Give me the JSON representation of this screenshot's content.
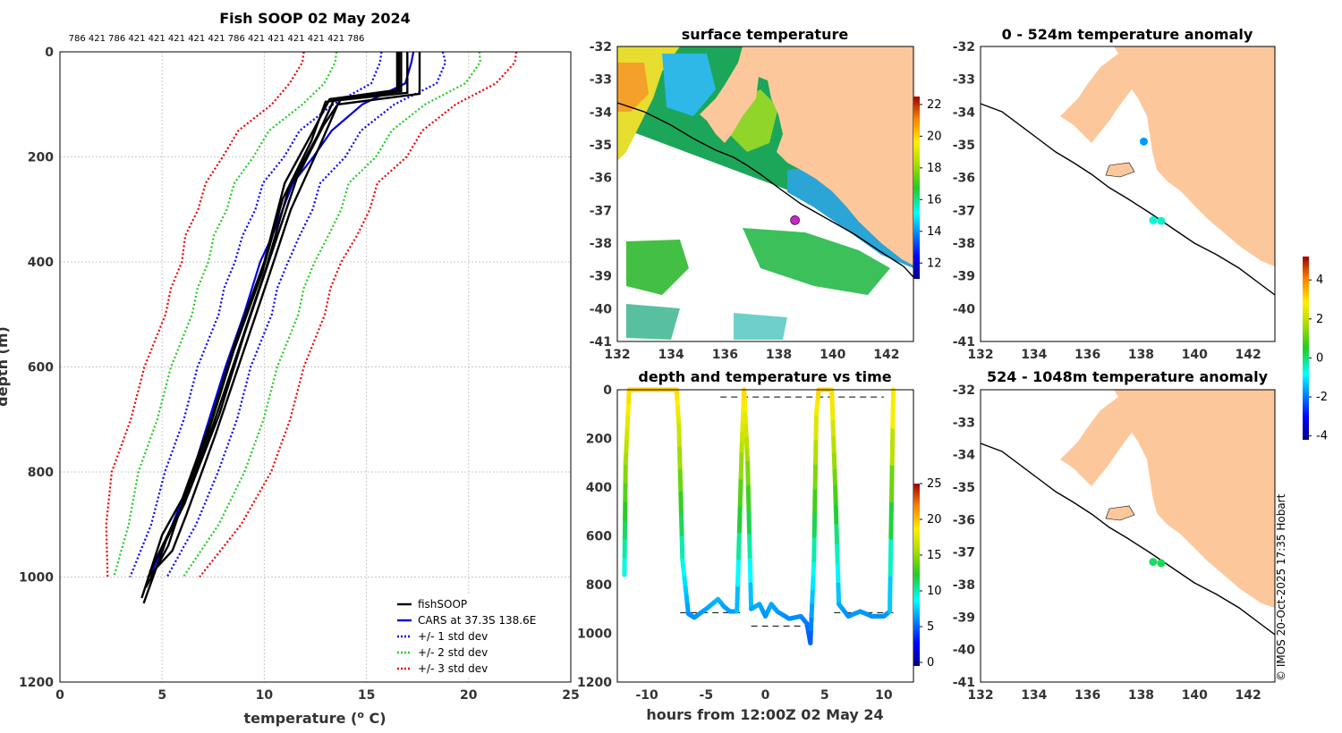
{
  "colors": {
    "fishsoop": "#000000",
    "cars": "#0000dd",
    "std1": "#0000ff",
    "std2": "#22cc22",
    "std3": "#ee0000",
    "land": "#fcc89b",
    "grid": "#c8c8c8",
    "frame": "#000000"
  },
  "credit": "© IMOS 20-Oct-2025 17:35 Hobart",
  "chart_data": [
    {
      "id": "profile",
      "type": "line",
      "title": "Fish SOOP 02 May 2024",
      "xlabel": "temperature (",
      "xlabel_sup": "o",
      "xlabel_tail": " C)",
      "ylabel": "depth (m)",
      "xlim": [
        0,
        25
      ],
      "ylim": [
        0,
        1200
      ],
      "y_reversed": true,
      "xticks": [
        0,
        5,
        10,
        15,
        20,
        25
      ],
      "yticks": [
        0,
        200,
        400,
        600,
        800,
        1000,
        1200
      ],
      "top_labels": "786 421 786 421 421 421 421 421 786 421 421 421 421 421 786",
      "legend_position": "bottom-right",
      "legend": [
        {
          "label": "fishSOOP",
          "color": "#000000",
          "style": "solid"
        },
        {
          "label": "CARS at 37.3S 138.6E",
          "color": "#0000dd",
          "style": "solid"
        },
        {
          "label": "+/- 1 std dev",
          "color": "#0000ff",
          "style": "dotted"
        },
        {
          "label": "+/- 2 std dev",
          "color": "#22cc22",
          "style": "dotted"
        },
        {
          "label": "+/- 3 std dev",
          "color": "#ee0000",
          "style": "dotted"
        }
      ],
      "cars": {
        "name": "CARS at 37.3S 138.6E",
        "depth": [
          0,
          20,
          60,
          100,
          150,
          200,
          250,
          300,
          350,
          400,
          450,
          500,
          600,
          700,
          800,
          900,
          1000
        ],
        "temp": [
          17.3,
          17.2,
          16.9,
          14.8,
          13.3,
          12.4,
          11.4,
          10.9,
          10.4,
          9.8,
          9.4,
          9.0,
          8.1,
          7.3,
          6.5,
          5.5,
          4.4
        ]
      },
      "std_bands": [
        {
          "name": "+/- 1 std dev",
          "sd": 1,
          "minus": [
            15.8,
            15.6,
            15.3,
            13.3,
            11.8,
            10.9,
            10.0,
            9.5,
            9.0,
            8.5,
            8.1,
            7.7,
            6.8,
            6.0,
            5.2,
            4.4,
            3.5
          ],
          "plus": [
            18.8,
            18.8,
            18.5,
            16.3,
            14.8,
            13.9,
            12.8,
            12.3,
            11.8,
            11.1,
            10.7,
            10.3,
            9.4,
            8.6,
            7.8,
            6.6,
            5.3
          ]
        },
        {
          "name": "+/- 2 std dev",
          "sd": 2,
          "minus": [
            13.6,
            13.4,
            13.0,
            11.8,
            10.3,
            9.4,
            8.6,
            8.1,
            7.6,
            7.2,
            6.8,
            6.4,
            5.5,
            4.7,
            3.9,
            3.3,
            2.7
          ],
          "plus": [
            20.6,
            20.5,
            19.9,
            17.8,
            16.3,
            15.4,
            14.2,
            13.7,
            13.2,
            12.4,
            12.0,
            11.6,
            10.7,
            9.9,
            9.1,
            7.7,
            6.1
          ]
        },
        {
          "name": "+/- 3 std dev",
          "sd": 3,
          "minus": [
            12.0,
            11.8,
            11.3,
            10.3,
            8.8,
            7.9,
            7.2,
            6.7,
            6.2,
            5.9,
            5.5,
            5.1,
            4.2,
            3.4,
            2.6,
            2.2,
            2.4
          ],
          "plus": [
            22.4,
            22.2,
            21.4,
            19.3,
            17.8,
            16.9,
            15.6,
            15.1,
            14.6,
            13.7,
            13.3,
            12.9,
            12.0,
            11.2,
            10.4,
            8.8,
            6.9
          ]
        }
      ],
      "fishsoop_profiles": [
        {
          "depth": [
            0,
            72,
            90,
            150,
            250,
            400,
            550,
            700,
            850,
            920,
            1040
          ],
          "temp": [
            16.6,
            16.6,
            13.2,
            12.4,
            11.0,
            10.0,
            8.6,
            7.4,
            6.0,
            5.0,
            4.0
          ]
        },
        {
          "depth": [
            0,
            75,
            92,
            160,
            260,
            410,
            560,
            710,
            860,
            930,
            1050
          ],
          "temp": [
            16.7,
            16.7,
            13.4,
            12.6,
            11.2,
            10.1,
            8.8,
            7.5,
            6.1,
            5.2,
            4.1
          ]
        },
        {
          "depth": [
            0,
            78,
            95,
            170,
            280,
            420,
            570,
            720,
            870,
            940,
            1020
          ],
          "temp": [
            17.0,
            17.0,
            13.0,
            12.3,
            10.9,
            9.9,
            8.5,
            7.3,
            5.9,
            5.3,
            4.2
          ]
        },
        {
          "depth": [
            0,
            80,
            100,
            180,
            300,
            430,
            580,
            730,
            880,
            950,
            1000
          ],
          "temp": [
            17.6,
            17.6,
            13.6,
            12.7,
            11.3,
            10.2,
            8.9,
            7.6,
            6.2,
            5.5,
            4.3
          ]
        },
        {
          "depth": [
            0,
            73,
            88,
            140,
            240,
            390,
            540,
            690,
            840,
            910,
            990
          ],
          "temp": [
            16.5,
            16.5,
            13.8,
            12.9,
            11.6,
            10.3,
            9.0,
            7.8,
            6.3,
            5.4,
            4.4
          ]
        }
      ]
    },
    {
      "id": "sst_map",
      "type": "heatmap",
      "title": "surface temperature",
      "xlim": [
        132,
        143
      ],
      "ylim": [
        -41,
        -32
      ],
      "xticks": [
        132,
        134,
        136,
        138,
        140,
        142
      ],
      "yticks": [
        -32,
        -33,
        -34,
        -35,
        -36,
        -37,
        -38,
        -39,
        -40,
        -41
      ],
      "colorbar": {
        "range": [
          11,
          22.5
        ],
        "ticks": [
          12,
          14,
          16,
          18,
          20,
          22
        ]
      },
      "marker": {
        "lon": 138.6,
        "lat": -37.3,
        "color": "#cc22cc"
      }
    },
    {
      "id": "depth_time",
      "type": "line",
      "title": "depth and temperature vs time",
      "xlabel": "hours from 12:00Z 02 May 24",
      "xlim": [
        -12.5,
        12.5
      ],
      "ylim": [
        0,
        1200
      ],
      "y_reversed": true,
      "xticks": [
        -10,
        -5,
        0,
        5,
        10
      ],
      "yticks": [
        0,
        200,
        400,
        600,
        800,
        1000,
        1200
      ],
      "colorbar": {
        "range": [
          -0.5,
          25
        ],
        "ticks": [
          0,
          5,
          10,
          15,
          20,
          25
        ]
      },
      "t": [
        -11.9,
        -11.8,
        -11.5,
        -7.5,
        -7.3,
        -7.0,
        -6.5,
        -6.0,
        -5.0,
        -4.5,
        -4.0,
        -3.5,
        -3.0,
        -2.4,
        -2.0,
        -1.8,
        -1.5,
        -1.2,
        -0.5,
        0.0,
        0.5,
        1.0,
        2.0,
        3.0,
        3.5,
        3.8,
        4.1,
        4.3,
        4.5,
        5.6,
        5.9,
        6.2,
        7.0,
        8.0,
        9.0,
        10.0,
        10.5,
        10.8
      ],
      "depth": [
        760,
        300,
        0,
        0,
        150,
        700,
        920,
        935,
        900,
        880,
        860,
        890,
        910,
        910,
        250,
        0,
        300,
        900,
        880,
        930,
        880,
        910,
        940,
        930,
        960,
        1040,
        700,
        100,
        0,
        0,
        400,
        880,
        930,
        910,
        930,
        930,
        910,
        0
      ],
      "temp_scale": "surface about 19 C, cooling to about 5 C at 1000 m",
      "dashed_targets": [
        {
          "t0": -7.2,
          "t1": -1.8,
          "depth": 915
        },
        {
          "t0": -1.2,
          "t1": 4.0,
          "depth": 970
        },
        {
          "t0": 5.8,
          "t1": 10.8,
          "depth": 915
        },
        {
          "t0": -3.8,
          "t1": 10.0,
          "depth": 30
        }
      ]
    },
    {
      "id": "anomaly_0_524",
      "type": "scatter",
      "title": "0 - 524m temperature anomaly",
      "xlim": [
        132,
        143
      ],
      "ylim": [
        -41,
        -32
      ],
      "xticks": [
        132,
        134,
        136,
        138,
        140,
        142
      ],
      "yticks": [
        -32,
        -33,
        -34,
        -35,
        -36,
        -37,
        -38,
        -39,
        -40,
        -41
      ],
      "points": [
        {
          "lon": 138.1,
          "lat": -34.9,
          "anomaly": -1.7
        },
        {
          "lon": 138.45,
          "lat": -37.3,
          "anomaly": -0.6
        },
        {
          "lon": 138.75,
          "lat": -37.32,
          "anomaly": -0.5
        }
      ]
    },
    {
      "id": "anomaly_524_1048",
      "type": "scatter",
      "title": "524 - 1048m temperature anomaly",
      "xlim": [
        132,
        143
      ],
      "ylim": [
        -41,
        -32
      ],
      "xticks": [
        132,
        134,
        136,
        138,
        140,
        142
      ],
      "yticks": [
        -32,
        -33,
        -34,
        -35,
        -36,
        -37,
        -38,
        -39,
        -40,
        -41
      ],
      "points": [
        {
          "lon": 138.45,
          "lat": -37.3,
          "anomaly": 0.1
        },
        {
          "lon": 138.75,
          "lat": -37.34,
          "anomaly": 0.2
        }
      ],
      "colorbar": {
        "range": [
          -4.2,
          5.2
        ],
        "ticks": [
          4,
          2,
          0,
          -2,
          -4
        ]
      }
    }
  ]
}
